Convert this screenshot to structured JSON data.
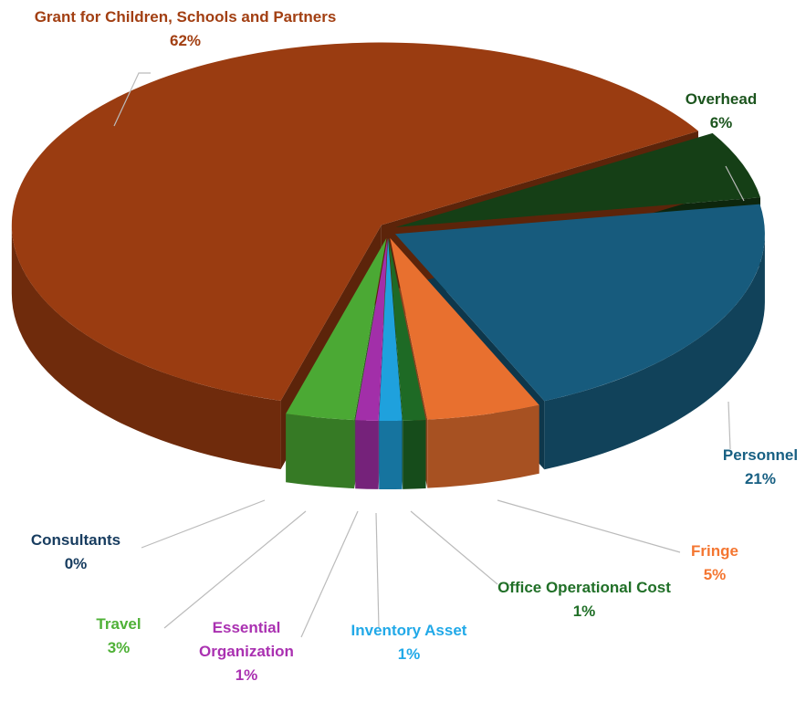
{
  "chart_data": {
    "type": "pie3d",
    "categories": [
      "Overhead",
      "Personnel",
      "Fringe",
      "Office Operational Cost",
      "Inventory Asset",
      "Essential Organization",
      "Consultants",
      "Travel",
      "Grant for Children, Schools and Partners"
    ],
    "values": [
      6,
      21,
      5,
      1,
      1,
      1,
      0,
      3,
      62
    ],
    "value_labels": [
      "6%",
      "21%",
      "5%",
      "1%",
      "1%",
      "1%",
      "0%",
      "3%",
      "62%"
    ],
    "colors": [
      "#153f16",
      "#175b7d",
      "#e8702f",
      "#1e6a25",
      "#1fa1dd",
      "#a22fa9",
      "#173a5b",
      "#4ba934",
      "#9a3c11"
    ]
  }
}
